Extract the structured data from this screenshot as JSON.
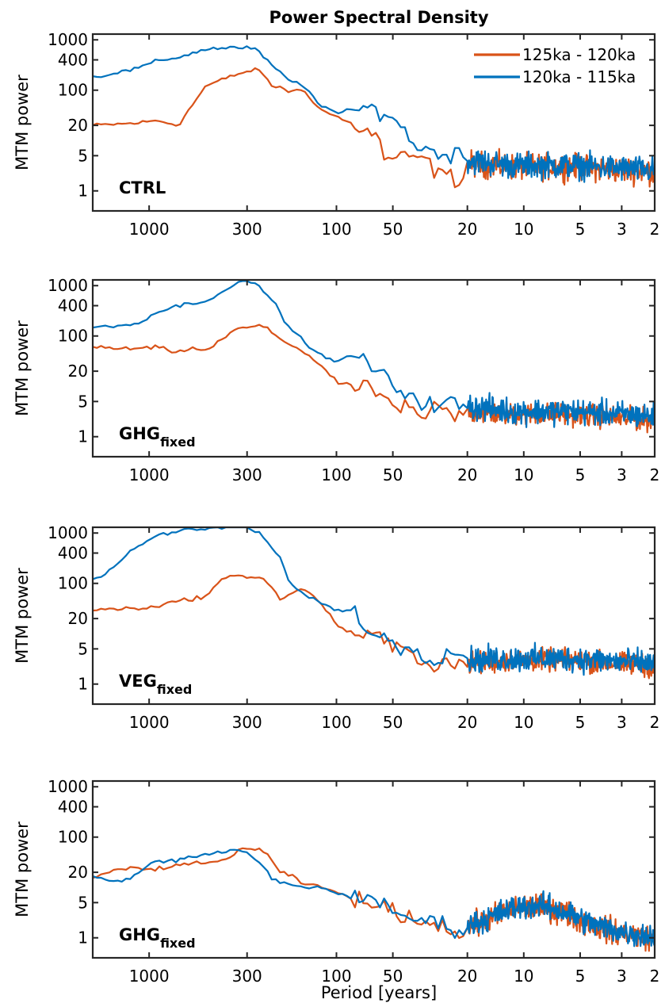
{
  "chart_data": {
    "type": "line",
    "title": "Power Spectral Density",
    "xlabel": "Period [years]",
    "ylabel": "MTM power",
    "x_scale": "log-reversed",
    "xlim": [
      2000,
      2
    ],
    "ylim": [
      0.4,
      1300
    ],
    "y_scale": "log",
    "x_ticks": [
      1000,
      300,
      100,
      50,
      20,
      10,
      5,
      3,
      2
    ],
    "x_tick_labels": [
      "1000",
      "300",
      "100",
      "50",
      "20",
      "10",
      "5",
      "3",
      "2"
    ],
    "y_ticks": [
      1,
      5,
      20,
      100,
      400,
      1000
    ],
    "y_tick_labels": [
      "1",
      "5",
      "20",
      "100",
      "400",
      "1000"
    ],
    "legend": {
      "placement": "top-right",
      "entries": [
        "125ka - 120ka",
        "120ka - 115ka"
      ]
    },
    "colors": {
      "s1": "#D95319",
      "s2": "#0072BD"
    },
    "panels": [
      {
        "label": "CTRL",
        "label_sub": "",
        "series": [
          {
            "name": "125ka - 120ka",
            "color": "#D95319",
            "x": [
              2000,
              1200,
              900,
              700,
              500,
              350,
              280,
              250,
              220,
              200,
              180,
              150,
              120,
              100,
              80,
              60,
              55,
              50,
              45,
              40,
              35,
              30,
              25,
              22,
              20
            ],
            "y": [
              20,
              22,
              25,
              20,
              120,
              200,
              250,
              240,
              110,
              120,
              95,
              100,
              40,
              30,
              20,
              12,
              4,
              4.5,
              5,
              4,
              5,
              2.5,
              2,
              1.5,
              3.5
            ],
            "tail": {
              "center": 3,
              "decay": 0.8,
              "noise": 0.35
            }
          },
          {
            "name": "120ka - 115ka",
            "color": "#0072BD",
            "x": [
              2000,
              1200,
              900,
              700,
              500,
              400,
              300,
              260,
              220,
              200,
              180,
              150,
              120,
              100,
              80,
              70,
              60,
              50,
              40,
              35,
              30,
              25,
              22,
              20
            ],
            "y": [
              180,
              260,
              380,
              450,
              650,
              700,
              700,
              600,
              300,
              220,
              160,
              120,
              50,
              35,
              40,
              45,
              40,
              30,
              10,
              7,
              6,
              5,
              6,
              4
            ],
            "tail": {
              "center": 3.2,
              "decay": 0.8,
              "noise": 0.35
            }
          }
        ]
      },
      {
        "label": "GHG",
        "label_sub": "fixed",
        "series": [
          {
            "name": "125ka - 120ka",
            "color": "#D95319",
            "x": [
              2000,
              1200,
              900,
              700,
              600,
              500,
              400,
              350,
              300,
              250,
              230,
              200,
              180,
              150,
              120,
              100,
              80,
              60,
              50,
              40,
              35,
              30,
              25,
              22,
              20
            ],
            "y": [
              60,
              55,
              60,
              45,
              60,
              50,
              90,
              130,
              150,
              160,
              130,
              90,
              70,
              50,
              25,
              12,
              10,
              8,
              4,
              3.5,
              2,
              4,
              3,
              2.5,
              3
            ],
            "tail": {
              "center": 2.8,
              "decay": 0.75,
              "noise": 0.3
            }
          },
          {
            "name": "120ka - 115ka",
            "color": "#0072BD",
            "x": [
              2000,
              1200,
              900,
              700,
              500,
              400,
              330,
              300,
              280,
              250,
              220,
              200,
              180,
              150,
              120,
              100,
              80,
              70,
              60,
              50,
              40,
              35,
              30,
              25,
              22,
              20
            ],
            "y": [
              150,
              170,
              300,
              400,
              500,
              800,
              1100,
              1300,
              1100,
              900,
              500,
              300,
              150,
              80,
              40,
              30,
              45,
              30,
              20,
              10,
              7,
              5,
              4,
              5,
              4,
              4
            ],
            "tail": {
              "center": 3.2,
              "decay": 0.8,
              "noise": 0.35
            }
          }
        ]
      },
      {
        "label": "VEG",
        "label_sub": "fixed",
        "series": [
          {
            "name": "125ka - 120ka",
            "color": "#D95319",
            "x": [
              2000,
              1200,
              900,
              700,
              500,
              400,
              300,
              250,
              230,
              200,
              180,
              160,
              150,
              120,
              100,
              90,
              70,
              60,
              50,
              45,
              40,
              35,
              30,
              25,
              22,
              20
            ],
            "y": [
              30,
              32,
              35,
              45,
              55,
              130,
              140,
              130,
              100,
              50,
              55,
              75,
              80,
              40,
              15,
              12,
              8,
              10,
              5,
              5,
              4,
              3,
              2.5,
              3,
              2.5,
              2.5
            ],
            "tail": {
              "center": 3,
              "decay": 0.75,
              "noise": 0.3
            }
          },
          {
            "name": "120ka - 115ka",
            "color": "#0072BD",
            "x": [
              2000,
              1700,
              1200,
              900,
              700,
              500,
              400,
              330,
              300,
              280,
              250,
              220,
              200,
              180,
              150,
              120,
              100,
              80,
              70,
              60,
              50,
              45,
              40,
              35,
              30,
              25,
              22,
              20
            ],
            "y": [
              120,
              150,
              500,
              900,
              1100,
              1200,
              1300,
              1350,
              1300,
              1100,
              900,
              500,
              300,
              120,
              60,
              40,
              30,
              28,
              15,
              8,
              7,
              5,
              6,
              4,
              3,
              5,
              4,
              3
            ],
            "tail": {
              "center": 3.2,
              "decay": 0.8,
              "noise": 0.35
            }
          }
        ]
      },
      {
        "label": "GHG",
        "label_sub": "fixed",
        "series": [
          {
            "name": "125ka - 120ka",
            "color": "#D95319",
            "x": [
              2000,
              1500,
              1200,
              1000,
              700,
              500,
              400,
              330,
              300,
              250,
              230,
              200,
              180,
              150,
              120,
              100,
              80,
              60,
              50,
              40,
              35,
              30,
              25,
              22,
              20
            ],
            "y": [
              15,
              22,
              25,
              22,
              28,
              30,
              35,
              55,
              60,
              55,
              40,
              20,
              18,
              12,
              10,
              8,
              6,
              4,
              3.5,
              2.5,
              2,
              2,
              1.5,
              1.3,
              1.5
            ],
            "tail": {
              "center": 1.8,
              "decay": 0.55,
              "noise": 0.35,
              "bump": {
                "at": 9,
                "gain": 2.3
              }
            }
          },
          {
            "name": "120ka - 115ka",
            "color": "#0072BD",
            "x": [
              2000,
              1500,
              1200,
              1000,
              700,
              500,
              400,
              330,
              300,
              270,
              240,
              220,
              200,
              180,
              150,
              120,
              100,
              80,
              60,
              50,
              40,
              35,
              30,
              25,
              22,
              20
            ],
            "y": [
              16,
              13,
              17,
              30,
              35,
              45,
              50,
              55,
              50,
              35,
              25,
              15,
              12,
              12,
              10,
              10,
              8,
              6,
              5,
              3.5,
              2.5,
              2,
              2.2,
              1.7,
              1.4,
              1.6
            ],
            "tail": {
              "center": 1.9,
              "decay": 0.55,
              "noise": 0.35,
              "bump": {
                "at": 9,
                "gain": 2.3
              }
            }
          }
        ]
      }
    ]
  }
}
